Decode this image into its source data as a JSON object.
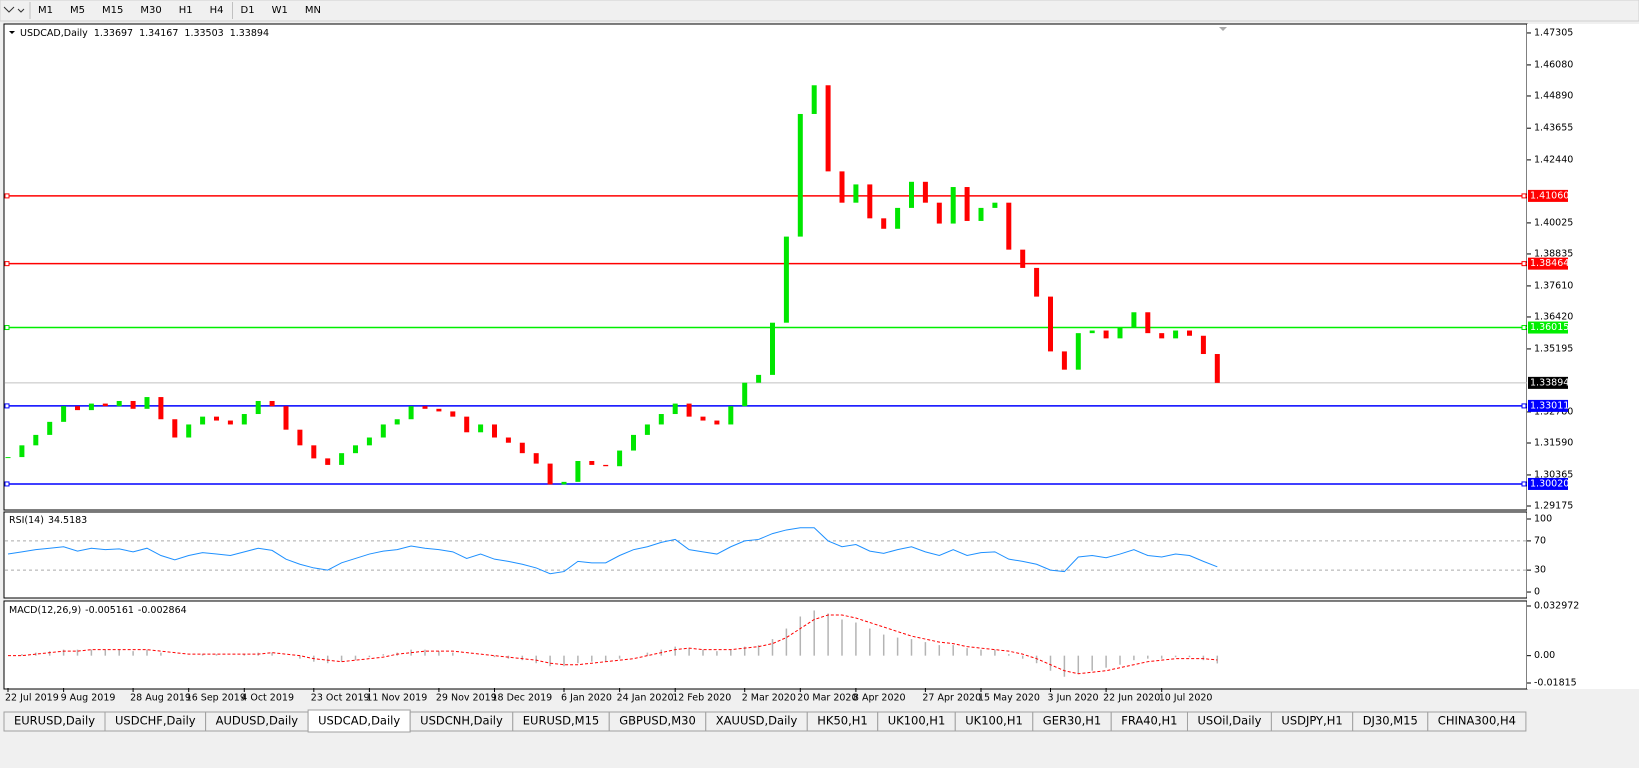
{
  "toolbar": {
    "timeframes": [
      "M1",
      "M5",
      "M15",
      "M30",
      "H1",
      "H4",
      "D1",
      "W1",
      "MN"
    ]
  },
  "chart_data": [
    {
      "type": "candlestick",
      "title": "USDCAD,Daily",
      "ohlc": [
        1.33697,
        1.34167,
        1.33503,
        1.33894
      ],
      "up_color": "#00e600",
      "down_color": "#ff0000",
      "categories": [
        "22 Jul 2019",
        null,
        null,
        null,
        "9 Aug 2019",
        null,
        null,
        null,
        null,
        "28 Aug 2019",
        null,
        null,
        null,
        "16 Sep 2019",
        null,
        null,
        null,
        "4 Oct 2019",
        null,
        null,
        null,
        null,
        "23 Oct 2019",
        null,
        null,
        null,
        "11 Nov 2019",
        null,
        null,
        null,
        null,
        "29 Nov 2019",
        null,
        null,
        null,
        "18 Dec 2019",
        null,
        null,
        null,
        null,
        "6 Jan 2020",
        null,
        null,
        null,
        "24 Jan 2020",
        null,
        null,
        null,
        "12 Feb 2020",
        null,
        null,
        null,
        null,
        "2 Mar 2020",
        null,
        null,
        null,
        "20 Mar 2020",
        null,
        null,
        null,
        "8 Apr 2020",
        null,
        null,
        null,
        null,
        "27 Apr 2020",
        null,
        null,
        null,
        "15 May 2020",
        null,
        null,
        null,
        null,
        "3 Jun 2020",
        null,
        null,
        null,
        "22 Jun 2020",
        null,
        null,
        null,
        "10 Jul 2020",
        null,
        null,
        null,
        null
      ],
      "values": [
        1.3105,
        1.315,
        1.319,
        1.324,
        1.33,
        1.3285,
        1.331,
        1.33,
        1.332,
        1.329,
        1.3335,
        1.325,
        1.318,
        1.323,
        1.326,
        1.3245,
        1.323,
        1.327,
        1.332,
        1.33,
        1.321,
        1.315,
        1.31,
        1.3075,
        1.312,
        1.315,
        1.318,
        1.323,
        1.325,
        1.33,
        1.329,
        1.328,
        1.326,
        1.32,
        1.323,
        1.318,
        1.316,
        1.312,
        1.308,
        1.3,
        1.301,
        1.309,
        1.3075,
        1.307,
        1.313,
        1.319,
        1.323,
        1.327,
        1.331,
        1.326,
        1.3245,
        1.323,
        1.33,
        1.339,
        1.342,
        1.362,
        1.395,
        1.442,
        1.453,
        1.42,
        1.408,
        1.415,
        1.402,
        1.398,
        1.406,
        1.416,
        1.408,
        1.4,
        1.414,
        1.401,
        1.406,
        1.408,
        1.39,
        1.383,
        1.372,
        1.351,
        1.344,
        1.358,
        1.359,
        1.356,
        1.36,
        1.366,
        1.358,
        1.356,
        1.359,
        1.357,
        1.35,
        1.33894
      ],
      "ylim": [
        1.2906,
        1.4761
      ],
      "yticks": [
        1.47305,
        {
          "value": 1.4608,
          "label": "1.46080"
        },
        {
          "value": 1.4489,
          "label": "1.44890"
        },
        1.43655,
        {
          "value": 1.4244,
          "label": "1.42440"
        },
        1.40025,
        1.38835,
        {
          "value": 1.3761,
          "label": "1.37610"
        },
        {
          "value": 1.3642,
          "label": "1.36420"
        },
        1.35195,
        {
          "value": 1.3278,
          "label": "1.32780"
        },
        {
          "value": 1.3159,
          "label": "1.31590"
        },
        1.30365,
        1.29175
      ],
      "levels": [
        {
          "value": 1.4106,
          "label": "1.41060",
          "color": "#ff0000"
        },
        {
          "value": 1.38464,
          "label": "1.38464",
          "color": "#ff0000"
        },
        {
          "value": 1.36015,
          "label": "1.36015",
          "color": "#00ee00"
        },
        {
          "value": 1.33011,
          "label": "1.33011",
          "color": "#0000ff"
        },
        {
          "value": 1.3002,
          "label": "1.30020",
          "color": "#0000ff"
        }
      ]
    },
    {
      "type": "line",
      "title": "RSI(14)",
      "color": "#1e90ff",
      "values": [
        52,
        55,
        58,
        60,
        62,
        56,
        60,
        58,
        59,
        55,
        60,
        50,
        44,
        50,
        54,
        52,
        50,
        55,
        60,
        57,
        45,
        38,
        33,
        30,
        40,
        46,
        52,
        56,
        58,
        63,
        60,
        58,
        55,
        46,
        52,
        45,
        42,
        38,
        33,
        25,
        28,
        42,
        40,
        40,
        50,
        58,
        62,
        68,
        72,
        58,
        55,
        52,
        62,
        70,
        72,
        80,
        85,
        88,
        88,
        70,
        62,
        65,
        56,
        53,
        58,
        62,
        55,
        50,
        58,
        50,
        54,
        55,
        45,
        42,
        38,
        30,
        28,
        48,
        50,
        47,
        52,
        58,
        50,
        48,
        52,
        50,
        42,
        34.5183
      ],
      "ylim": [
        -6.8,
        108.2
      ],
      "yticks": [
        100,
        70,
        30,
        0
      ],
      "levels": [
        70,
        30
      ]
    },
    {
      "type": "macd",
      "title": "MACD(12,26,9)",
      "color": "#b4b4b4",
      "signal_color": "#ff0000",
      "values": [
        0,
        0.001,
        0.002,
        0.003,
        0.004,
        0.004,
        0.004,
        0.004,
        0.004,
        0.003,
        0.004,
        0.002,
        0,
        0,
        0.001,
        0.001,
        0,
        0.001,
        0.002,
        0.002,
        0,
        -0.002,
        -0.004,
        -0.005,
        -0.004,
        -0.003,
        -0.001,
        0.001,
        0.002,
        0.004,
        0.004,
        0.003,
        0.002,
        0,
        0,
        -0.001,
        -0.002,
        -0.003,
        -0.005,
        -0.007,
        -0.007,
        -0.005,
        -0.004,
        -0.004,
        -0.002,
        0,
        0.002,
        0.004,
        0.006,
        0.005,
        0.004,
        0.003,
        0.004,
        0.006,
        0.007,
        0.011,
        0.018,
        0.026,
        0.03,
        0.028,
        0.024,
        0.022,
        0.018,
        0.014,
        0.012,
        0.011,
        0.009,
        0.007,
        0.007,
        0.005,
        0.004,
        0.004,
        0.001,
        -0.002,
        -0.005,
        -0.01,
        -0.014,
        -0.012,
        -0.01,
        -0.008,
        -0.006,
        -0.003,
        -0.002,
        -0.002,
        -0.001,
        -0.001,
        -0.003,
        -0.005161
      ],
      "signal_values": [
        0,
        0,
        0.001,
        0.002,
        0.003,
        0.003,
        0.004,
        0.004,
        0.004,
        0.004,
        0.004,
        0.003,
        0.002,
        0.001,
        0.001,
        0.001,
        0.001,
        0.001,
        0.001,
        0.002,
        0.001,
        0,
        -0.002,
        -0.003,
        -0.004,
        -0.003,
        -0.002,
        -0.001,
        0.001,
        0.002,
        0.003,
        0.003,
        0.003,
        0.002,
        0.001,
        0,
        -0.001,
        -0.002,
        -0.003,
        -0.005,
        -0.006,
        -0.006,
        -0.005,
        -0.004,
        -0.003,
        -0.002,
        0,
        0.002,
        0.004,
        0.005,
        0.004,
        0.004,
        0.004,
        0.005,
        0.006,
        0.008,
        0.012,
        0.018,
        0.024,
        0.027,
        0.027,
        0.025,
        0.022,
        0.019,
        0.016,
        0.013,
        0.011,
        0.009,
        0.008,
        0.006,
        0.005,
        0.004,
        0.003,
        0.001,
        -0.002,
        -0.006,
        -0.01,
        -0.012,
        -0.011,
        -0.01,
        -0.008,
        -0.006,
        -0.004,
        -0.003,
        -0.002,
        -0.002,
        -0.002,
        -0.002864
      ],
      "ylim": [
        -0.02147,
        0.034964
      ],
      "yticks": [
        0.032972,
        {
          "value": 0,
          "label": "0.00"
        },
        -0.01815
      ]
    }
  ],
  "tabs": [
    "EURUSD,Daily",
    "USDCHF,Daily",
    "AUDUSD,Daily",
    "USDCAD,Daily",
    "USDCNH,Daily",
    "EURUSD,M15",
    "GBPUSD,M30",
    "XAUUSD,Daily",
    "HK50,H1",
    "UK100,H1",
    "UK100,H1",
    "GER30,H1",
    "FRA40,H1",
    "USOil,Daily",
    "USDJPY,H1",
    "DJ30,M15",
    "CHINA300,H4"
  ],
  "active_tab": 3
}
